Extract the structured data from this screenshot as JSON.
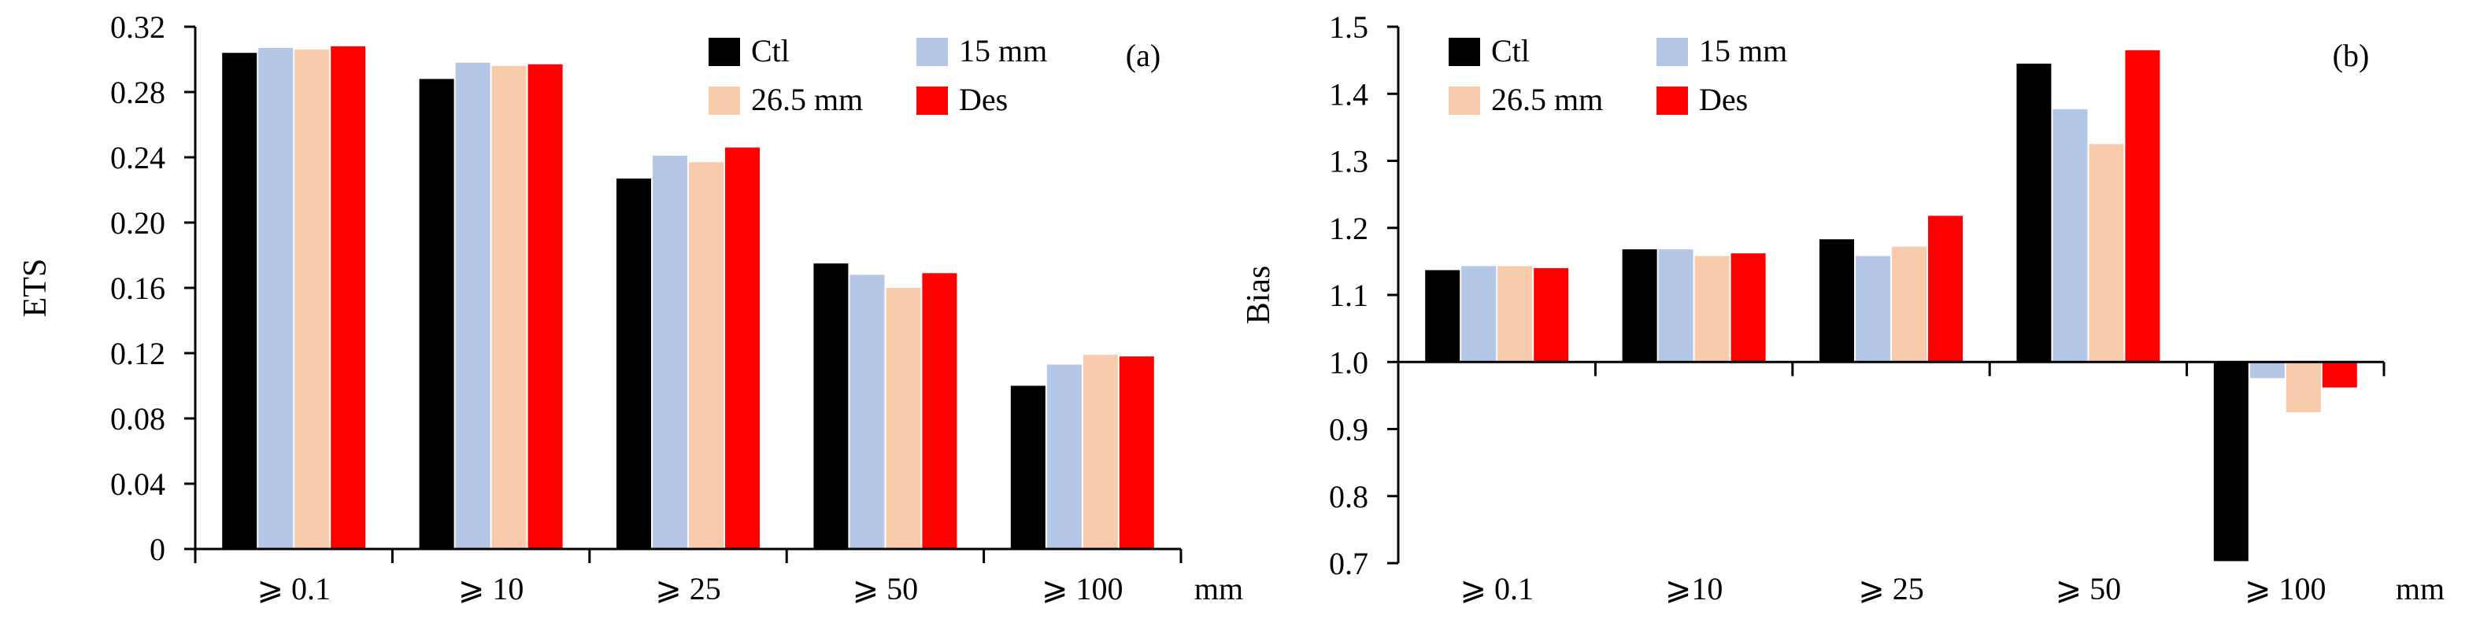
{
  "chart_data": [
    {
      "panel": "(a)",
      "type": "bar",
      "title": "",
      "ylabel": "ETS",
      "xlabel": "",
      "x_unit": "mm",
      "categories": [
        "⩾ 0.1",
        "⩾ 10",
        "⩾ 25",
        "⩾ 50",
        "⩾ 100"
      ],
      "ylim": [
        0,
        0.32
      ],
      "yticks": [
        "0",
        "0.04",
        "0.08",
        "0.12",
        "0.16",
        "0.20",
        "0.24",
        "0.28",
        "0.32"
      ],
      "baseline": 0,
      "legend_position": "top-right",
      "series": [
        {
          "name": "Ctl",
          "color": "#000000",
          "values": [
            0.304,
            0.288,
            0.227,
            0.175,
            0.1
          ]
        },
        {
          "name": "15 mm",
          "color": "#b4c7e7",
          "values": [
            0.307,
            0.298,
            0.241,
            0.168,
            0.113
          ]
        },
        {
          "name": "26.5 mm",
          "color": "#f8cbad",
          "values": [
            0.306,
            0.296,
            0.237,
            0.16,
            0.119
          ]
        },
        {
          "name": "Des",
          "color": "#ff0000",
          "values": [
            0.308,
            0.297,
            0.246,
            0.169,
            0.118
          ]
        }
      ]
    },
    {
      "panel": "(b)",
      "type": "bar",
      "title": "",
      "ylabel": "Bias",
      "xlabel": "",
      "x_unit": "mm",
      "categories": [
        "⩾ 0.1",
        "⩾10",
        "⩾ 25",
        "⩾ 50",
        "⩾ 100"
      ],
      "ylim": [
        0.7,
        1.5
      ],
      "yticks": [
        "0.7",
        "0.8",
        "0.9",
        "1.0",
        "1.1",
        "1.2",
        "1.3",
        "1.4",
        "1.5"
      ],
      "baseline": 1.0,
      "legend_position": "top-right",
      "series": [
        {
          "name": "Ctl",
          "color": "#000000",
          "values": [
            1.137,
            1.168,
            1.183,
            1.445,
            0.703
          ]
        },
        {
          "name": "15 mm",
          "color": "#b4c7e7",
          "values": [
            1.143,
            1.168,
            1.158,
            1.377,
            0.976
          ]
        },
        {
          "name": "26.5 mm",
          "color": "#f8cbad",
          "values": [
            1.143,
            1.158,
            1.172,
            1.325,
            0.925
          ]
        },
        {
          "name": "Des",
          "color": "#ff0000",
          "values": [
            1.14,
            1.162,
            1.218,
            1.465,
            0.962
          ]
        }
      ]
    }
  ]
}
